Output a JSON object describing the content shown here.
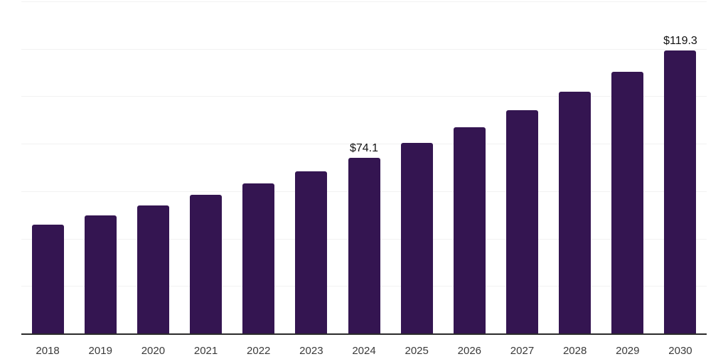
{
  "page": {
    "background": "#ffffff"
  },
  "chart_data": {
    "type": "bar",
    "categories": [
      "2018",
      "2019",
      "2020",
      "2021",
      "2022",
      "2023",
      "2024",
      "2025",
      "2026",
      "2027",
      "2028",
      "2029",
      "2030"
    ],
    "values": [
      46.0,
      49.8,
      53.9,
      58.4,
      63.2,
      68.4,
      74.1,
      80.2,
      86.8,
      94.0,
      101.8,
      110.2,
      119.3
    ],
    "point_labels": [
      "",
      "",
      "",
      "",
      "",
      "",
      "$74.1",
      "",
      "",
      "",
      "",
      "",
      "$119.3"
    ],
    "ylim": [
      0,
      140
    ],
    "grid_step": 20,
    "grid": true,
    "legend_position": "none",
    "colors": {
      "bar": "#341551",
      "grid": "#f2f2f2",
      "axis": "#2b2b2b",
      "tick_label": "#3a3a3a",
      "value_label": "#111111"
    }
  }
}
